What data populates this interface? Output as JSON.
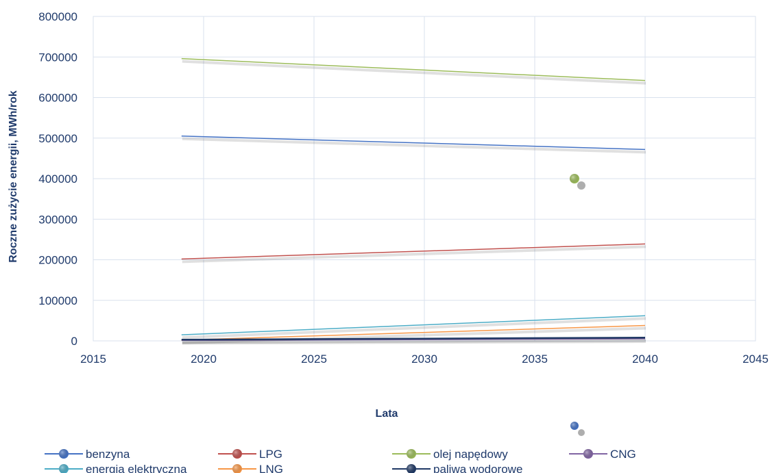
{
  "chart_data": {
    "type": "line",
    "title": "",
    "xlabel": "Lata",
    "ylabel": "Roczne zużycie energii, MWh/rok",
    "xlim": [
      2015,
      2045
    ],
    "ylim": [
      0,
      800000
    ],
    "x_ticks": [
      "2015",
      "2020",
      "2025",
      "2030",
      "2035",
      "2040",
      "2045"
    ],
    "y_ticks": [
      "0",
      "100000",
      "200000",
      "300000",
      "400000",
      "500000",
      "600000",
      "700000",
      "800000"
    ],
    "grid": true,
    "legend_position": "bottom",
    "series": [
      {
        "name": "benzyna",
        "color": "#4472c4",
        "x": [
          2019,
          2040
        ],
        "y": [
          505000,
          472000
        ]
      },
      {
        "name": "LPG",
        "color": "#c0504d",
        "x": [
          2019,
          2040
        ],
        "y": [
          202000,
          239000
        ]
      },
      {
        "name": "olej napędowy",
        "color": "#9bbb59",
        "x": [
          2019,
          2040
        ],
        "y": [
          696000,
          642000
        ]
      },
      {
        "name": "CNG",
        "color": "#8064a2",
        "x": [
          2019,
          2040
        ],
        "y": [
          1000,
          5000
        ]
      },
      {
        "name": "energia elektryczna",
        "color": "#4bacc6",
        "x": [
          2019,
          2040
        ],
        "y": [
          15000,
          62000
        ]
      },
      {
        "name": "LNG",
        "color": "#f79646",
        "x": [
          2019,
          2040
        ],
        "y": [
          2000,
          38000
        ]
      },
      {
        "name": "paliwa wodorowe",
        "color": "#1f3864",
        "x": [
          2019,
          2040
        ],
        "y": [
          3000,
          8000
        ]
      }
    ],
    "stray_markers": [
      {
        "color": "#9bbb59",
        "x": 2036.8,
        "y": 400000
      }
    ]
  },
  "legend_extra_marker": {
    "color": "#4472c4"
  }
}
